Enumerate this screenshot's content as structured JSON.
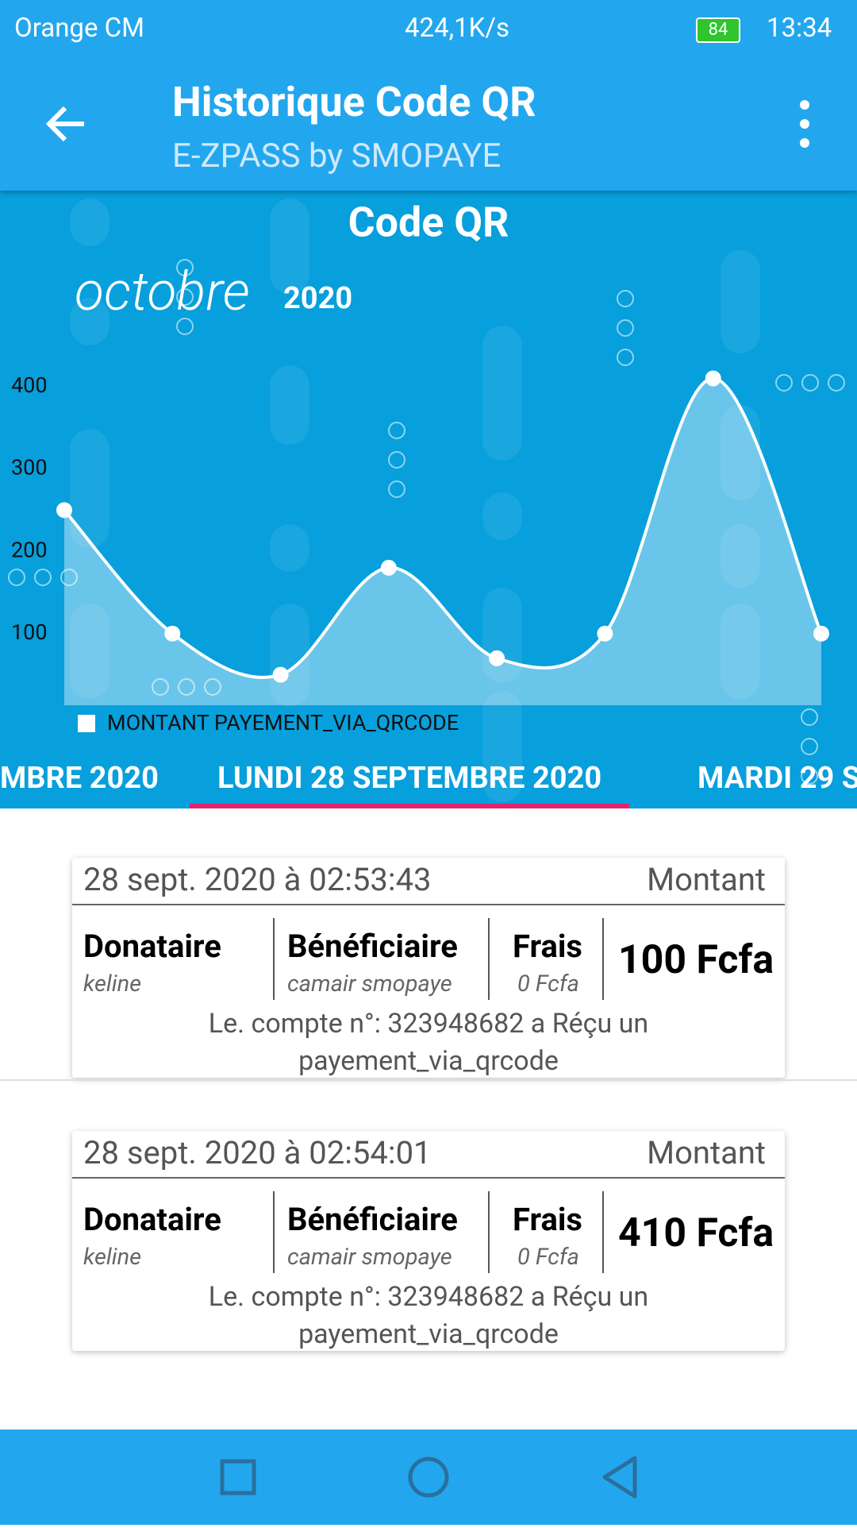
{
  "status_bar": {
    "carrier": "Orange CM",
    "speed": "424,1K/s",
    "battery": "84",
    "time": "13:34"
  },
  "app_bar": {
    "title": "Historique Code QR",
    "subtitle": "E-ZPASS by SMOPAYE"
  },
  "chart_data": {
    "type": "line",
    "title": "Code QR",
    "month": "octobre",
    "year": "2020",
    "categories": [
      null,
      null,
      null,
      null,
      null,
      null,
      null,
      null
    ],
    "series": [
      {
        "name": "MONTANT PAYEMENT_VIA_QRCODE",
        "color": "#ffffff",
        "values": [
          250,
          100,
          50,
          180,
          70,
          100,
          410,
          100
        ]
      }
    ],
    "ylim": [
      13,
      450
    ],
    "yticks": [
      100,
      200,
      300,
      400
    ],
    "area": true,
    "smooth": true
  },
  "tabs": {
    "items": [
      "MBRE 2020",
      "LUNDI 28 SEPTEMBRE 2020",
      "MARDI 29 S"
    ],
    "selected": 1
  },
  "transactions": [
    {
      "datetime": "28 sept. 2020 à 02:53:43",
      "amount_header": "Montant",
      "donor_label": "Donataire",
      "donor": "keline",
      "beneficiary_label": "Bénéficiaire",
      "beneficiary": "camair smopaye",
      "fee_label": "Frais",
      "fee": "0 Fcfa",
      "amount": "100 Fcfa",
      "description": "Le. compte n°: 323948682 a Réçu un payement_via_qrcode"
    },
    {
      "datetime": "28 sept. 2020 à 02:54:01",
      "amount_header": "Montant",
      "donor_label": "Donataire",
      "donor": "keline",
      "beneficiary_label": "Bénéficiaire",
      "beneficiary": "camair smopaye",
      "fee_label": "Frais",
      "fee": "0 Fcfa",
      "amount": "410 Fcfa",
      "description": "Le. compte n°: 323948682 a Réçu un payement_via_qrcode"
    }
  ]
}
